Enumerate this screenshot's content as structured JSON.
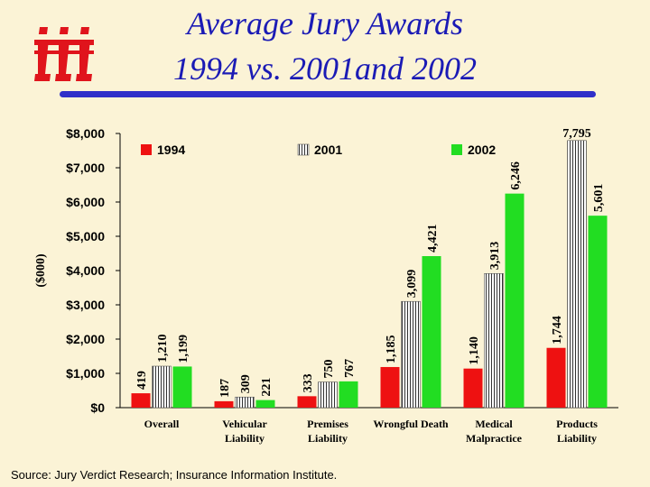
{
  "slide": {
    "title_line1": "Average Jury Awards",
    "title_line2": "1994 vs. 2001and 2002",
    "logo": "iii-logo",
    "source": "Source: Jury Verdict Research; Insurance Information Institute."
  },
  "colors": {
    "background": "#fbf3d6",
    "title": "#1b1bb5",
    "title_rule": "#2f2fc9",
    "logo": "#e0141c",
    "series_1994": "#ee1111",
    "series_2001": "#ffffff",
    "series_2002": "#22dd22"
  },
  "chart_data": {
    "type": "bar",
    "title": "Average Jury Awards 1994 vs. 2001and 2002",
    "ylabel": "($000)",
    "xlabel": "",
    "ylim": [
      0,
      8000
    ],
    "yticks": [
      0,
      1000,
      2000,
      3000,
      4000,
      5000,
      6000,
      7000,
      8000
    ],
    "ytick_labels": [
      "$0",
      "$1,000",
      "$2,000",
      "$3,000",
      "$4,000",
      "$5,000",
      "$6,000",
      "$7,000",
      "$8,000"
    ],
    "categories": [
      [
        "Overall"
      ],
      [
        "Vehicular",
        "Liability"
      ],
      [
        "Premises",
        "Liability"
      ],
      [
        "Wrongful Death"
      ],
      [
        "Medical",
        "Malpractice"
      ],
      [
        "Products",
        "Liability"
      ]
    ],
    "series": [
      {
        "name": "1994",
        "values": [
          419,
          187,
          333,
          1185,
          1140,
          1744
        ],
        "labels": [
          "419",
          "187",
          "333",
          "1,185",
          "1,140",
          "1,744"
        ]
      },
      {
        "name": "2001",
        "values": [
          1210,
          309,
          750,
          3099,
          3913,
          7795
        ],
        "labels": [
          "1,210",
          "309",
          "750",
          "3,099",
          "3,913",
          "7,795"
        ]
      },
      {
        "name": "2002",
        "values": [
          1199,
          221,
          767,
          4421,
          6246,
          5601
        ],
        "labels": [
          "1,199",
          "221",
          "767",
          "4,421",
          "6,246",
          "5,601"
        ]
      }
    ],
    "grid": false,
    "legend_position": "top"
  }
}
